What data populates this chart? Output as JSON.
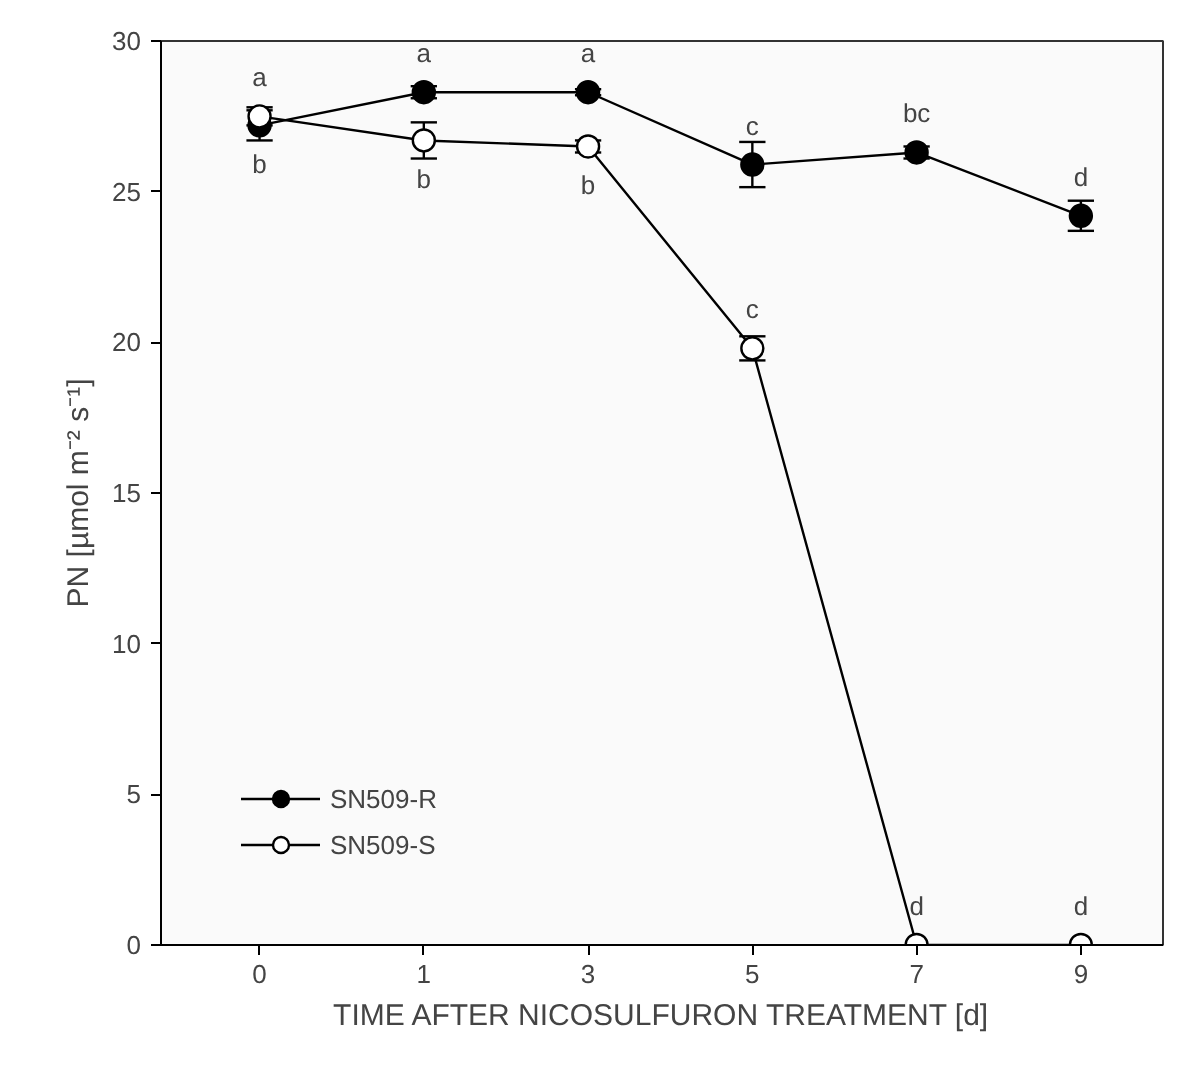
{
  "chart_data": {
    "type": "line",
    "xlabel": "TIME AFTER NICOSULFURON TREATMENT [d]",
    "ylabel": "PN [µmol m⁻² s⁻¹]",
    "categories": [
      "0",
      "1",
      "3",
      "5",
      "7",
      "9"
    ],
    "series": [
      {
        "name": "SN509-R",
        "color": "#000000",
        "values": [
          27.2,
          28.3,
          28.3,
          25.9,
          26.3,
          24.2
        ],
        "errors": [
          0.5,
          0.2,
          0.1,
          0.75,
          0.2,
          0.5
        ]
      },
      {
        "name": "SN509-S",
        "color": "#ffffff",
        "values": [
          27.5,
          26.7,
          26.5,
          19.8,
          0,
          0
        ],
        "errors": [
          0.3,
          0.6,
          0.2,
          0.4,
          null,
          null
        ]
      }
    ],
    "ylim": [
      0,
      30
    ],
    "yticks": [
      0,
      5,
      10,
      15,
      20,
      25,
      30
    ],
    "grid": false,
    "legend": "bottom left",
    "marker": "circle",
    "line_style": "solid",
    "annotations": [
      {
        "text": "a",
        "x": "0",
        "y": 27.5
      },
      {
        "text": "b",
        "x": "0",
        "y": 27.2
      },
      {
        "text": "a",
        "x": "1",
        "y": 28.3
      },
      {
        "text": "b",
        "x": "1",
        "y": 26.7
      },
      {
        "text": "a",
        "x": "3",
        "y": 28.3
      },
      {
        "text": "b",
        "x": "3",
        "y": 26.5
      },
      {
        "text": "c",
        "x": "5",
        "y": 25.9
      },
      {
        "text": "c",
        "x": "5",
        "y": 19.8
      },
      {
        "text": "bc",
        "x": "7",
        "y": 26.3
      },
      {
        "text": "d",
        "x": "7",
        "y": 0
      },
      {
        "text": "d",
        "x": "9",
        "y": 24.2
      },
      {
        "text": "d",
        "x": "9",
        "y": 0
      }
    ]
  }
}
